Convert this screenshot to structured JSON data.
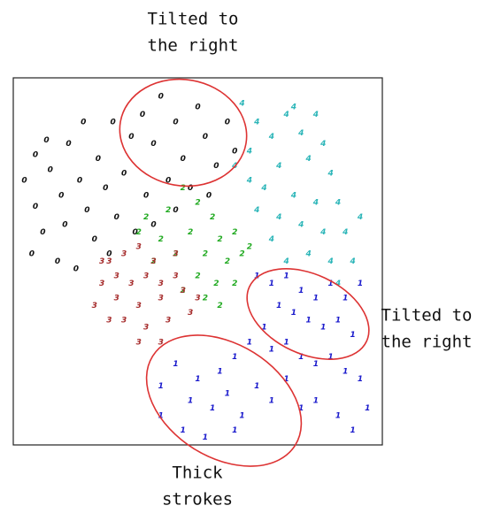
{
  "chart_data": {
    "type": "scatter",
    "xlim": [
      0,
      100
    ],
    "ylim": [
      0,
      100
    ],
    "series": [
      {
        "glyph": "0",
        "color": "#111111",
        "x": [
          3,
          6,
          10,
          13,
          8,
          14,
          18,
          20,
          23,
          25,
          22,
          28,
          30,
          32,
          27,
          35,
          38,
          40,
          44,
          46,
          42,
          36,
          50,
          52,
          55,
          48,
          58,
          60,
          15,
          9,
          5,
          12,
          17,
          26,
          33,
          44,
          53,
          38,
          6,
          19
        ],
        "values": [
          72,
          65,
          75,
          68,
          58,
          60,
          72,
          64,
          78,
          70,
          56,
          62,
          74,
          84,
          88,
          90,
          82,
          95,
          88,
          78,
          72,
          68,
          92,
          84,
          76,
          70,
          88,
          80,
          82,
          83,
          52,
          50,
          48,
          52,
          58,
          64,
          68,
          60,
          79,
          88
        ]
      },
      {
        "glyph": "4",
        "color": "#2bb5b8",
        "x": [
          62,
          66,
          70,
          64,
          74,
          78,
          72,
          68,
          80,
          84,
          86,
          76,
          82,
          88,
          90,
          84,
          78,
          72,
          66,
          70,
          86,
          92,
          80,
          74,
          88,
          94,
          64,
          60,
          76,
          82
        ],
        "values": [
          93,
          88,
          84,
          80,
          90,
          85,
          76,
          70,
          78,
          82,
          74,
          68,
          66,
          66,
          58,
          58,
          60,
          62,
          64,
          56,
          50,
          50,
          52,
          50,
          44,
          62,
          72,
          76,
          92,
          90
        ]
      },
      {
        "glyph": "2",
        "color": "#22aa22",
        "x": [
          46,
          50,
          42,
          36,
          54,
          48,
          40,
          56,
          60,
          44,
          52,
          58,
          62,
          50,
          55,
          46,
          60,
          56,
          64,
          34,
          38,
          52
        ],
        "values": [
          70,
          66,
          64,
          62,
          62,
          58,
          56,
          56,
          58,
          52,
          52,
          50,
          52,
          46,
          44,
          42,
          44,
          38,
          54,
          58,
          50,
          40
        ]
      },
      {
        "glyph": "3",
        "color": "#a52a2a",
        "x": [
          26,
          30,
          34,
          38,
          24,
          28,
          32,
          36,
          40,
          44,
          22,
          28,
          34,
          40,
          46,
          26,
          30,
          36,
          42,
          48,
          34,
          40,
          24,
          44,
          50
        ],
        "values": [
          50,
          52,
          54,
          50,
          44,
          46,
          44,
          46,
          44,
          46,
          38,
          40,
          38,
          40,
          42,
          34,
          34,
          32,
          34,
          36,
          28,
          28,
          50,
          52,
          40
        ]
      },
      {
        "glyph": "1",
        "color": "#1a1acc",
        "x": [
          66,
          70,
          74,
          78,
          82,
          86,
          90,
          94,
          72,
          76,
          80,
          84,
          88,
          92,
          68,
          64,
          70,
          74,
          78,
          82,
          86,
          90,
          94,
          60,
          56,
          50,
          44,
          40,
          48,
          54,
          58,
          62,
          66,
          70,
          74,
          78,
          82,
          88,
          46,
          52,
          60,
          40,
          96,
          92
        ],
        "values": [
          46,
          44,
          46,
          42,
          40,
          44,
          40,
          44,
          38,
          36,
          34,
          32,
          34,
          30,
          32,
          28,
          26,
          28,
          24,
          22,
          24,
          20,
          18,
          24,
          20,
          18,
          22,
          16,
          12,
          10,
          14,
          8,
          16,
          12,
          18,
          10,
          12,
          8,
          4,
          2,
          4,
          8,
          10,
          4
        ]
      }
    ],
    "annotations": [
      {
        "lines": [
          "Tilted to",
          "the right"
        ]
      },
      {
        "lines": [
          "Tilted to",
          "the right"
        ]
      },
      {
        "lines": [
          "Thick",
          "strokes"
        ]
      }
    ]
  }
}
